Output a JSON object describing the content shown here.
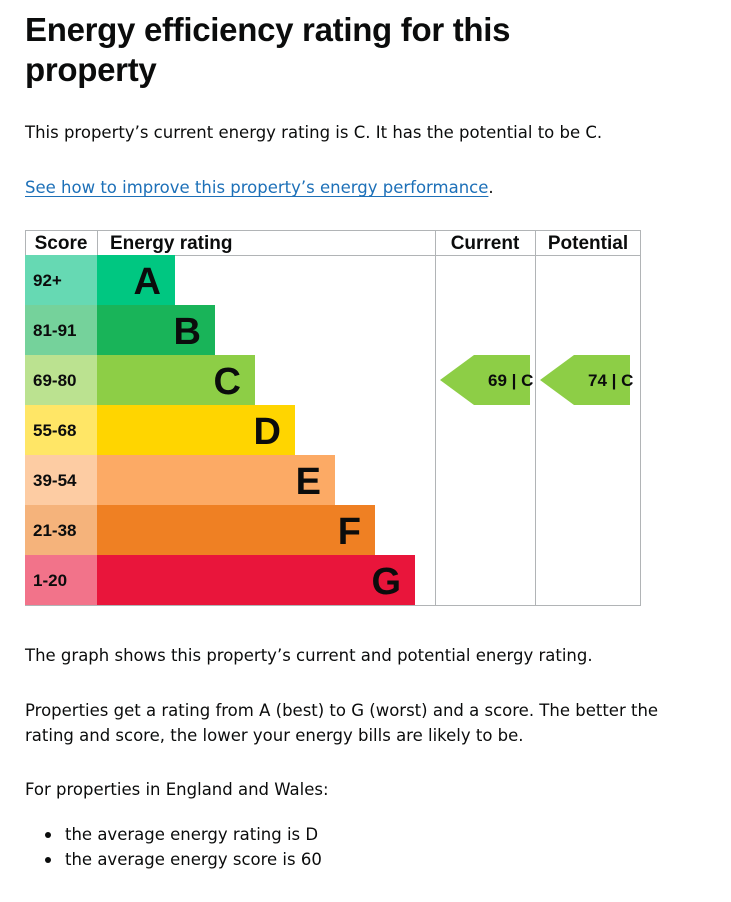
{
  "page": {
    "title": "Energy efficiency rating for this property",
    "current_text": "This property’s current energy rating is C. It has the potential to be C.",
    "improve_link": "See how to improve this property’s energy performance",
    "improve_link_suffix": ".",
    "graph_text": "The graph shows this property’s current and potential energy rating.",
    "rating_text": "Properties get a rating from A (best) to G (worst) and a score. The better the rating and score, the lower your energy bills are likely to be.",
    "region_text": "For properties in England and Wales:",
    "averages": [
      "the average energy rating is D",
      "the average energy score is 60"
    ]
  },
  "chart_data": {
    "type": "table",
    "headers": {
      "score": "Score",
      "rating": "Energy rating",
      "current": "Current",
      "potential": "Potential"
    },
    "bands": [
      {
        "score": "92+",
        "letter": "A",
        "color": "#00c781",
        "score_bg": "#66d9b3"
      },
      {
        "score": "81-91",
        "letter": "B",
        "color": "#19b459",
        "score_bg": "#75d29b"
      },
      {
        "score": "69-80",
        "letter": "C",
        "color": "#8dce46",
        "score_bg": "#bbe290"
      },
      {
        "score": "55-68",
        "letter": "D",
        "color": "#ffd500",
        "score_bg": "#ffe666"
      },
      {
        "score": "39-54",
        "letter": "E",
        "color": "#fcaa65",
        "score_bg": "#fdcca3"
      },
      {
        "score": "21-38",
        "letter": "F",
        "color": "#ef8023",
        "score_bg": "#f5b37b"
      },
      {
        "score": "1-20",
        "letter": "G",
        "color": "#e9153b",
        "score_bg": "#f2738a"
      }
    ],
    "current": {
      "score": 69,
      "letter": "C",
      "label": "69 | C",
      "color": "#8dce46"
    },
    "potential": {
      "score": 74,
      "letter": "C",
      "label": "74 | C",
      "color": "#8dce46"
    }
  }
}
